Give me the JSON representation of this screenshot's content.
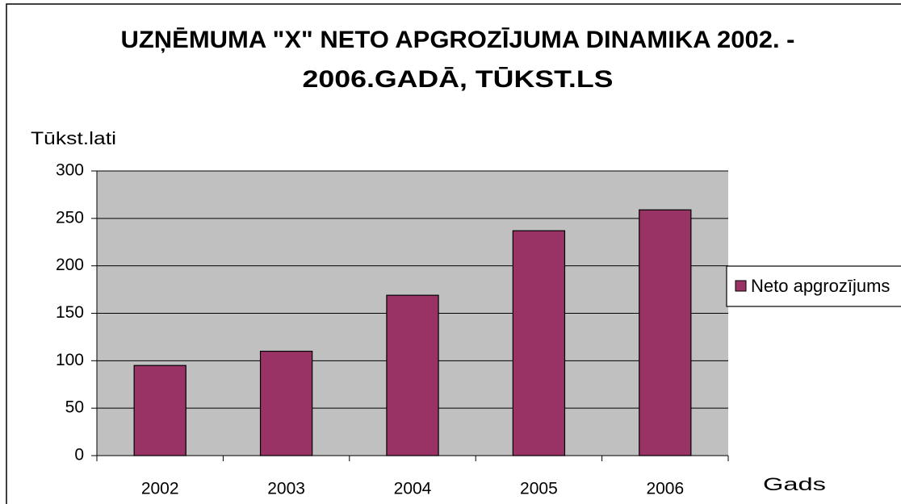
{
  "chart_data": {
    "type": "bar",
    "title": [
      "UZŅĒMUMA \"X\" NETO APGROZĪJUMA DINAMIKA 2002. -",
      "2006.GADĀ, TŪKST.LS"
    ],
    "y_label": "Tūkst.lati",
    "x_label": "Gads",
    "categories": [
      "2002",
      "2003",
      "2004",
      "2005",
      "2006"
    ],
    "series": [
      {
        "name": "Neto apgrozījums",
        "color": "#993366",
        "values": [
          95,
          110,
          169,
          237,
          259
        ]
      }
    ],
    "ylim": [
      0,
      300
    ],
    "yticks": [
      0,
      50,
      100,
      150,
      200,
      250,
      300
    ],
    "grid": true,
    "legend": "right"
  }
}
